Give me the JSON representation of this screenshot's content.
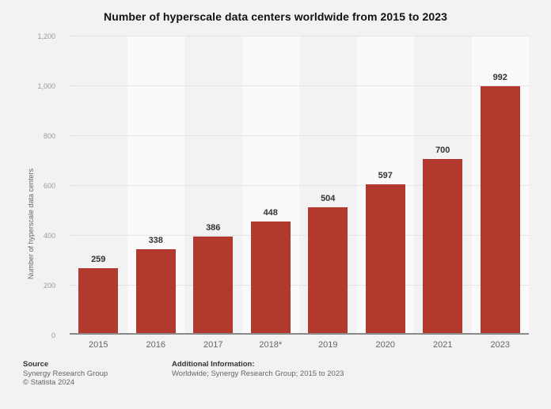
{
  "chart_data": {
    "type": "bar",
    "title": "Number of hyperscale data centers worldwide from 2015 to 2023",
    "categories": [
      "2015",
      "2016",
      "2017",
      "2018*",
      "2019",
      "2020",
      "2021",
      "2023"
    ],
    "values": [
      259,
      338,
      386,
      448,
      504,
      597,
      700,
      992
    ],
    "xlabel": "",
    "ylabel": "Number of hyperscale data centers",
    "ylim": [
      0,
      1200
    ],
    "yticks": [
      0,
      200,
      400,
      600,
      800,
      1000,
      1200
    ],
    "ytick_labels": [
      "0",
      "200",
      "400",
      "600",
      "800",
      "1,000",
      "1,200"
    ],
    "grid": "horizontal-dotted",
    "legend": "none",
    "colors": {
      "bar": "#b1392e",
      "background": "#f2f2f2",
      "band_alt": "#fafafa",
      "gridline": "#d4d4d4",
      "baseline": "#8a8a8a"
    }
  },
  "footer": {
    "source_label": "Source",
    "source_value": "Synergy Research Group",
    "copyright": "© Statista 2024",
    "additional_info_label": "Additional Information:",
    "additional_info_value": "Worldwide; Synergy Research Group; 2015 to 2023"
  }
}
